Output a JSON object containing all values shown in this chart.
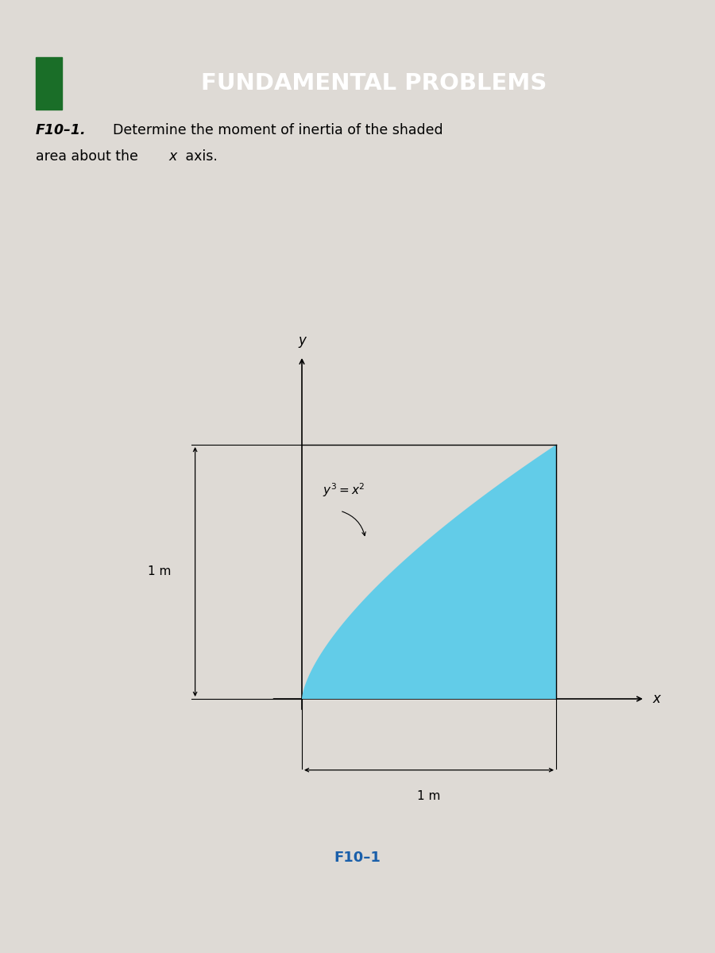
{
  "page_bg": "#dedad5",
  "header_green": "#2ab540",
  "header_dark_green": "#1a6e28",
  "header_text": "FUNDAMENTAL PROBLEMS",
  "header_text_color": "#ffffff",
  "problem_label": "F10–1.",
  "shaded_color": "#62cce8",
  "shaded_alpha": 1.0,
  "label_color": "#1a5faa",
  "top_bar_color": "#1e2d4a",
  "dim_label_left": "1 m",
  "dim_label_bottom": "1 m",
  "figure_label": "F10–1",
  "ox": 0.38,
  "oy": 0.3,
  "scale": 0.38
}
